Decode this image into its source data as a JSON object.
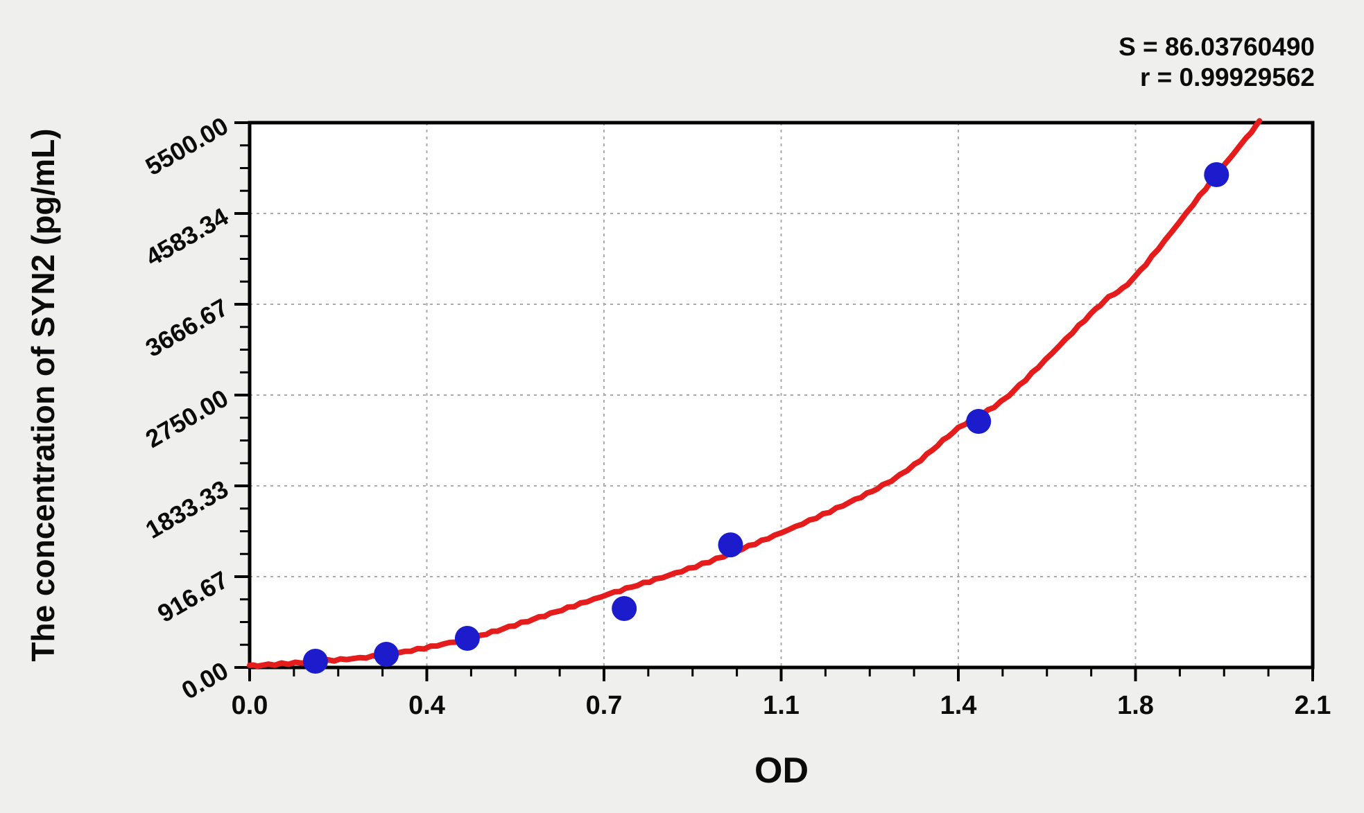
{
  "page": {
    "background": "#efefee"
  },
  "stats": {
    "s": "S = 86.03760490",
    "r": "r = 0.99929562"
  },
  "chart_data": {
    "type": "scatter",
    "title": "",
    "xlabel": "OD",
    "ylabel": "The concentration of SYN2 (pg/mL)",
    "xlim": [
      0,
      2.1
    ],
    "ylim": [
      0,
      5500
    ],
    "grid": true,
    "legend": "none",
    "x_major_ticks": [
      0,
      0.35,
      0.7,
      1.05,
      1.4,
      1.75,
      2.1
    ],
    "x_tick_labels": [
      "0.0",
      "0.4",
      "0.7",
      "1.1",
      "1.4",
      "1.8",
      "2.1"
    ],
    "y_major_ticks": [
      0,
      916.67,
      1833.33,
      2750,
      3666.67,
      4583.34,
      5500
    ],
    "y_tick_labels": [
      "0.00",
      "916.67",
      "1833.33",
      "2750.00",
      "3666.67",
      "4583.34",
      "5500.00"
    ],
    "minor_ticks_per_interval": 3,
    "fit_stats": {
      "S": 86.0376049,
      "r": 0.99929562
    },
    "points": [
      {
        "od": 0.13,
        "conc": 63
      },
      {
        "od": 0.27,
        "conc": 133
      },
      {
        "od": 0.43,
        "conc": 294
      },
      {
        "od": 0.74,
        "conc": 595
      },
      {
        "od": 0.95,
        "conc": 1238
      },
      {
        "od": 1.44,
        "conc": 2484
      },
      {
        "od": 1.91,
        "conc": 4975
      }
    ],
    "curve": [
      [
        0.0,
        15
      ],
      [
        0.13,
        60
      ],
      [
        0.27,
        128
      ],
      [
        0.43,
        290
      ],
      [
        0.55,
        470
      ],
      [
        0.71,
        740
      ],
      [
        0.95,
        1150
      ],
      [
        1.25,
        1835
      ],
      [
        1.4,
        2415
      ],
      [
        1.5,
        2750
      ],
      [
        1.68,
        3660
      ],
      [
        1.75,
        3950
      ],
      [
        1.91,
        4975
      ],
      [
        1.995,
        5510
      ]
    ],
    "colors": {
      "point": "#1c1ccc",
      "curve": "#e51c1c",
      "grid": "#aaaaaa",
      "axis": "#000000",
      "plot_bg": "#ffffff"
    }
  }
}
